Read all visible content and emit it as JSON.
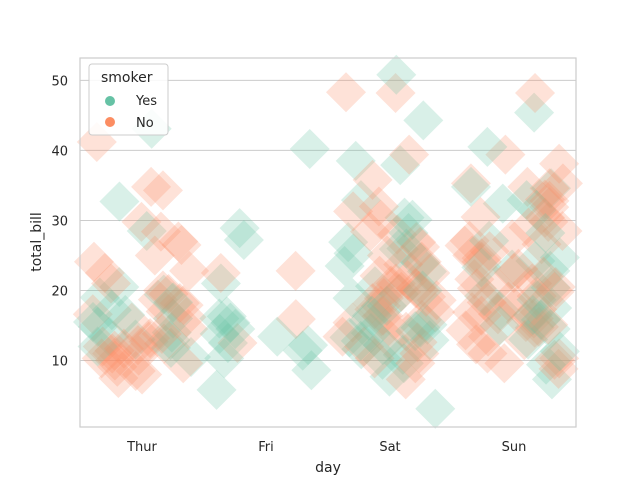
{
  "chart_data": {
    "type": "scatter",
    "xlabel": "day",
    "ylabel": "total_bill",
    "categories": [
      "Thur",
      "Fri",
      "Sat",
      "Sun"
    ],
    "ylim": [
      0.5,
      53.2
    ],
    "yticks": [
      10,
      20,
      30,
      40,
      50
    ],
    "grid": "horizontal",
    "legend": {
      "title": "smoker",
      "position": "top-left"
    },
    "series": [
      {
        "name": "Yes",
        "color": "#66c2a5",
        "points": [
          [
            "Thur",
            17.2
          ],
          [
            "Thur",
            19.4
          ],
          [
            "Thur",
            16.0
          ],
          [
            "Thur",
            28.5
          ],
          [
            "Thur",
            32.7
          ],
          [
            "Thur",
            43.1
          ],
          [
            "Thur",
            15.5
          ],
          [
            "Thur",
            13.4
          ],
          [
            "Thur",
            20.5
          ],
          [
            "Thur",
            14.0
          ],
          [
            "Thur",
            12.0
          ],
          [
            "Thur",
            18.3
          ],
          [
            "Thur",
            16.5
          ],
          [
            "Thur",
            13.0
          ],
          [
            "Thur",
            11.8
          ],
          [
            "Thur",
            10.5
          ],
          [
            "Thur",
            19.0
          ],
          [
            "Thur",
            14.8
          ],
          [
            "Thur",
            12.9
          ],
          [
            "Fri",
            40.2
          ],
          [
            "Fri",
            28.9
          ],
          [
            "Fri",
            27.2
          ],
          [
            "Fri",
            21.0
          ],
          [
            "Fri",
            15.4
          ],
          [
            "Fri",
            13.4
          ],
          [
            "Fri",
            12.5
          ],
          [
            "Fri",
            11.4
          ],
          [
            "Fri",
            8.6
          ],
          [
            "Fri",
            5.8
          ],
          [
            "Fri",
            16.3
          ],
          [
            "Fri",
            10.3
          ],
          [
            "Fri",
            13.8
          ],
          [
            "Fri",
            16.0
          ],
          [
            "Fri",
            14.5
          ],
          [
            "Fri",
            12.2
          ],
          [
            "Sat",
            50.8
          ],
          [
            "Sat",
            44.3
          ],
          [
            "Sat",
            38.5
          ],
          [
            "Sat",
            37.9
          ],
          [
            "Sat",
            32.9
          ],
          [
            "Sat",
            30.1
          ],
          [
            "Sat",
            30.4
          ],
          [
            "Sat",
            28.2
          ],
          [
            "Sat",
            26.9
          ],
          [
            "Sat",
            25.9
          ],
          [
            "Sat",
            25.3
          ],
          [
            "Sat",
            24.0
          ],
          [
            "Sat",
            22.7
          ],
          [
            "Sat",
            20.6
          ],
          [
            "Sat",
            20.0
          ],
          [
            "Sat",
            19.5
          ],
          [
            "Sat",
            18.9
          ],
          [
            "Sat",
            17.8
          ],
          [
            "Sat",
            16.4
          ],
          [
            "Sat",
            15.7
          ],
          [
            "Sat",
            15.1
          ],
          [
            "Sat",
            14.7
          ],
          [
            "Sat",
            13.9
          ],
          [
            "Sat",
            13.3
          ],
          [
            "Sat",
            12.8
          ],
          [
            "Sat",
            12.2
          ],
          [
            "Sat",
            11.6
          ],
          [
            "Sat",
            10.8
          ],
          [
            "Sat",
            10.1
          ],
          [
            "Sat",
            9.6
          ],
          [
            "Sat",
            7.7
          ],
          [
            "Sat",
            3.1
          ],
          [
            "Sat",
            26.0
          ],
          [
            "Sat",
            23.5
          ],
          [
            "Sat",
            14.2
          ],
          [
            "Sat",
            12.9
          ],
          [
            "Sun",
            40.5
          ],
          [
            "Sun",
            45.4
          ],
          [
            "Sun",
            34.8
          ],
          [
            "Sun",
            34.6
          ],
          [
            "Sun",
            32.4
          ],
          [
            "Sun",
            28.2
          ],
          [
            "Sun",
            27.1
          ],
          [
            "Sun",
            24.7
          ],
          [
            "Sun",
            23.3
          ],
          [
            "Sun",
            20.4
          ],
          [
            "Sun",
            18.7
          ],
          [
            "Sun",
            17.5
          ],
          [
            "Sun",
            16.5
          ],
          [
            "Sun",
            15.8
          ],
          [
            "Sun",
            14.5
          ],
          [
            "Sun",
            13.0
          ],
          [
            "Sun",
            11.3
          ],
          [
            "Sun",
            9.4
          ],
          [
            "Sun",
            7.3
          ],
          [
            "Sun",
            24.2
          ],
          [
            "Sun",
            32.9
          ],
          [
            "Sun",
            23.0
          ],
          [
            "Sun",
            19.2
          ],
          [
            "Sun",
            15.0
          ],
          [
            "Sun",
            31.5
          ],
          [
            "Sun",
            22.8
          ],
          [
            "Sun",
            17.1
          ]
        ]
      },
      {
        "name": "No",
        "color": "#fc8d62",
        "points": [
          [
            "Thur",
            41.2
          ],
          [
            "Thur",
            34.3
          ],
          [
            "Thur",
            34.8
          ],
          [
            "Thur",
            29.8
          ],
          [
            "Thur",
            27.0
          ],
          [
            "Thur",
            25.0
          ],
          [
            "Thur",
            24.1
          ],
          [
            "Thur",
            22.5
          ],
          [
            "Thur",
            21.0
          ],
          [
            "Thur",
            20.0
          ],
          [
            "Thur",
            19.5
          ],
          [
            "Thur",
            18.7
          ],
          [
            "Thur",
            18.2
          ],
          [
            "Thur",
            17.9
          ],
          [
            "Thur",
            16.6
          ],
          [
            "Thur",
            16.2
          ],
          [
            "Thur",
            15.4
          ],
          [
            "Thur",
            14.5
          ],
          [
            "Thur",
            13.8
          ],
          [
            "Thur",
            13.2
          ],
          [
            "Thur",
            12.7
          ],
          [
            "Thur",
            12.4
          ],
          [
            "Thur",
            12.0
          ],
          [
            "Thur",
            11.7
          ],
          [
            "Thur",
            11.4
          ],
          [
            "Thur",
            11.0
          ],
          [
            "Thur",
            10.7
          ],
          [
            "Thur",
            10.3
          ],
          [
            "Thur",
            10.0
          ],
          [
            "Thur",
            9.6
          ],
          [
            "Thur",
            9.1
          ],
          [
            "Thur",
            8.5
          ],
          [
            "Thur",
            8.0
          ],
          [
            "Thur",
            7.5
          ],
          [
            "Thur",
            28.4
          ],
          [
            "Thur",
            22.8
          ],
          [
            "Thur",
            26.5
          ],
          [
            "Thur",
            17.0
          ],
          [
            "Thur",
            12.2
          ],
          [
            "Fri",
            22.5
          ],
          [
            "Fri",
            22.8
          ],
          [
            "Fri",
            15.9
          ],
          [
            "Fri",
            12.5
          ],
          [
            "Sat",
            48.3
          ],
          [
            "Sat",
            48.2
          ],
          [
            "Sat",
            39.4
          ],
          [
            "Sat",
            35.8
          ],
          [
            "Sat",
            31.3
          ],
          [
            "Sat",
            28.4
          ],
          [
            "Sat",
            26.9
          ],
          [
            "Sat",
            26.2
          ],
          [
            "Sat",
            25.0
          ],
          [
            "Sat",
            24.1
          ],
          [
            "Sat",
            23.7
          ],
          [
            "Sat",
            22.1
          ],
          [
            "Sat",
            21.0
          ],
          [
            "Sat",
            20.3
          ],
          [
            "Sat",
            19.8
          ],
          [
            "Sat",
            19.1
          ],
          [
            "Sat",
            18.6
          ],
          [
            "Sat",
            18.2
          ],
          [
            "Sat",
            17.8
          ],
          [
            "Sat",
            17.3
          ],
          [
            "Sat",
            16.9
          ],
          [
            "Sat",
            16.3
          ],
          [
            "Sat",
            15.8
          ],
          [
            "Sat",
            15.4
          ],
          [
            "Sat",
            14.9
          ],
          [
            "Sat",
            14.1
          ],
          [
            "Sat",
            13.4
          ],
          [
            "Sat",
            13.0
          ],
          [
            "Sat",
            12.0
          ],
          [
            "Sat",
            11.0
          ],
          [
            "Sat",
            10.3
          ],
          [
            "Sat",
            9.6
          ],
          [
            "Sat",
            7.3
          ],
          [
            "Sat",
            20.7
          ],
          [
            "Sat",
            21.5
          ],
          [
            "Sat",
            18.9
          ],
          [
            "Sat",
            30.1
          ],
          [
            "Sat",
            22.5
          ],
          [
            "Sat",
            32.0
          ],
          [
            "Sat",
            28.0
          ],
          [
            "Sat",
            12.6
          ],
          [
            "Sat",
            20.0
          ],
          [
            "Sat",
            16.4
          ],
          [
            "Sun",
            48.2
          ],
          [
            "Sun",
            38.1
          ],
          [
            "Sun",
            39.4
          ],
          [
            "Sun",
            35.3
          ],
          [
            "Sun",
            34.6
          ],
          [
            "Sun",
            32.8
          ],
          [
            "Sun",
            31.9
          ],
          [
            "Sun",
            30.4
          ],
          [
            "Sun",
            29.8
          ],
          [
            "Sun",
            29.0
          ],
          [
            "Sun",
            28.5
          ],
          [
            "Sun",
            27.3
          ],
          [
            "Sun",
            26.4
          ],
          [
            "Sun",
            25.6
          ],
          [
            "Sun",
            24.6
          ],
          [
            "Sun",
            24.1
          ],
          [
            "Sun",
            23.1
          ],
          [
            "Sun",
            22.5
          ],
          [
            "Sun",
            21.6
          ],
          [
            "Sun",
            21.0
          ],
          [
            "Sun",
            20.3
          ],
          [
            "Sun",
            19.8
          ],
          [
            "Sun",
            19.2
          ],
          [
            "Sun",
            18.4
          ],
          [
            "Sun",
            17.9
          ],
          [
            "Sun",
            17.3
          ],
          [
            "Sun",
            16.6
          ],
          [
            "Sun",
            16.0
          ],
          [
            "Sun",
            15.5
          ],
          [
            "Sun",
            14.8
          ],
          [
            "Sun",
            14.3
          ],
          [
            "Sun",
            13.4
          ],
          [
            "Sun",
            12.9
          ],
          [
            "Sun",
            12.3
          ],
          [
            "Sun",
            11.0
          ],
          [
            "Sun",
            10.3
          ],
          [
            "Sun",
            9.6
          ],
          [
            "Sun",
            8.8
          ],
          [
            "Sun",
            35.3
          ],
          [
            "Sun",
            33.0
          ],
          [
            "Sun",
            26.6
          ],
          [
            "Sun",
            25.0
          ],
          [
            "Sun",
            22.0
          ],
          [
            "Sun",
            20.7
          ],
          [
            "Sun",
            18.3
          ],
          [
            "Sun",
            16.9
          ],
          [
            "Sun",
            15.1
          ],
          [
            "Sun",
            34.8
          ],
          [
            "Sun",
            30.5
          ],
          [
            "Sun",
            27.1
          ],
          [
            "Sun",
            20.5
          ],
          [
            "Sun",
            16.4
          ],
          [
            "Sun",
            14.7
          ],
          [
            "Sun",
            10.1
          ]
        ]
      }
    ]
  }
}
